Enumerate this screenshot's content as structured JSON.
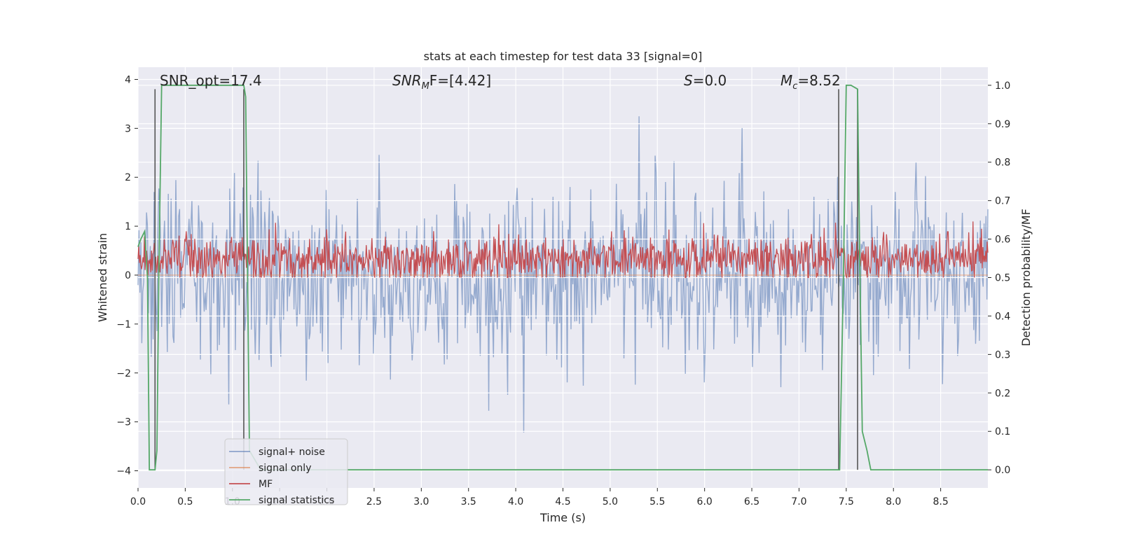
{
  "chart_data": {
    "type": "line",
    "title": "stats at each timestep for test data 33 [signal=0]",
    "xlabel": "Time (s)",
    "ylabel_left": "Whitened strain",
    "ylabel_right": "Detection probability/MF",
    "xlim": [
      0.0,
      9.0
    ],
    "ylim_left": [
      -4.35,
      4.25
    ],
    "ylim_right": [
      -0.047,
      1.047
    ],
    "x_ticks": [
      "0.0",
      "0.5",
      "1.0",
      "1.5",
      "2.0",
      "2.5",
      "3.0",
      "3.5",
      "4.0",
      "4.5",
      "5.0",
      "5.5",
      "6.0",
      "6.5",
      "7.0",
      "7.5",
      "8.0",
      "8.5"
    ],
    "y_ticks_left": [
      "−4",
      "−3",
      "−2",
      "−1",
      "0",
      "1",
      "2",
      "3",
      "4"
    ],
    "y_ticks_right": [
      "0.0",
      "0.1",
      "0.2",
      "0.3",
      "0.4",
      "0.5",
      "0.6",
      "0.7",
      "0.8",
      "0.9",
      "1.0"
    ],
    "grid": true,
    "legend_position": "lower-left",
    "annotations": {
      "snr_opt": "SNR_opt=17.4",
      "snr_mf_main": "SNR",
      "snr_mf_sub": "M",
      "snr_mf_rest": "F=[4.42]",
      "s_var": "S",
      "s_rest": "=0.0",
      "mc_var": "M",
      "mc_sub": "c",
      "mc_rest": "=8.52"
    },
    "series": [
      {
        "name": "signal+ noise",
        "color": "#4c72b0",
        "noise_std": 0.9,
        "n_points": 900,
        "x_range": [
          0.0,
          9.0
        ]
      },
      {
        "name": "signal only",
        "color": "#dd8452",
        "x": [
          0.0,
          9.0
        ],
        "y": [
          0.0,
          0.0
        ]
      },
      {
        "name": "MF",
        "color": "#c44e52",
        "axis": "right",
        "mean": 0.55,
        "spread": 0.03,
        "n_points": 1200,
        "x_range": [
          0.0,
          9.0
        ]
      },
      {
        "name": "signal statistics",
        "color": "#55a868",
        "axis": "right",
        "x": [
          0.0,
          0.03,
          0.07,
          0.1,
          0.12,
          0.18,
          0.2,
          0.22,
          0.25,
          0.4,
          0.6,
          0.8,
          1.0,
          1.12,
          1.14,
          1.16,
          1.18,
          1.3,
          2.0,
          3.0,
          4.0,
          5.0,
          6.0,
          7.0,
          7.4,
          7.43,
          7.47,
          7.5,
          7.55,
          7.62,
          7.64,
          7.67,
          7.72,
          7.76,
          8.0,
          8.5,
          9.0
        ],
        "y": [
          0.58,
          0.6,
          0.62,
          0.5,
          0.0,
          0.0,
          0.05,
          0.5,
          1.0,
          1.0,
          1.0,
          1.0,
          1.0,
          1.0,
          0.97,
          0.5,
          0.05,
          0.0,
          0.0,
          0.0,
          0.0,
          0.0,
          0.0,
          0.0,
          0.0,
          0.0,
          0.5,
          1.0,
          1.0,
          0.99,
          0.6,
          0.1,
          0.05,
          0.0,
          0.0,
          0.0,
          0.0
        ]
      }
    ],
    "vertical_markers": [
      0.18,
      1.12,
      7.42,
      7.62
    ]
  }
}
